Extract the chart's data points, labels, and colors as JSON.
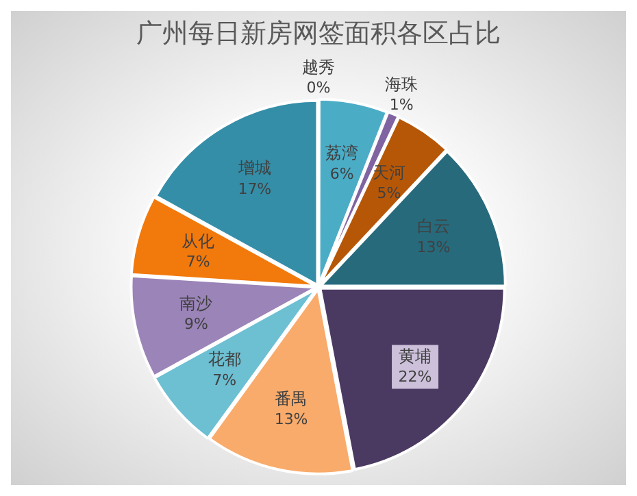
{
  "chart_data": {
    "type": "pie",
    "title": "广州每日新房网签面积各区占比",
    "categories": [
      "越秀",
      "荔湾",
      "海珠",
      "天河",
      "白云",
      "黄埔",
      "番禺",
      "花都",
      "南沙",
      "从化",
      "增城"
    ],
    "values": [
      0,
      6,
      1,
      5,
      13,
      22,
      13,
      7,
      9,
      7,
      17
    ],
    "value_labels": [
      "0%",
      "6%",
      "1%",
      "5%",
      "13%",
      "22%",
      "13%",
      "7%",
      "9%",
      "7%",
      "17%"
    ],
    "colors": [
      "#2e75b6",
      "#4bacc6",
      "#8064a2",
      "#b65708",
      "#276a7c",
      "#4a3a62",
      "#f9ab6b",
      "#6dbfd2",
      "#9b84b8",
      "#f2790c",
      "#348ea8"
    ],
    "legend": false
  }
}
